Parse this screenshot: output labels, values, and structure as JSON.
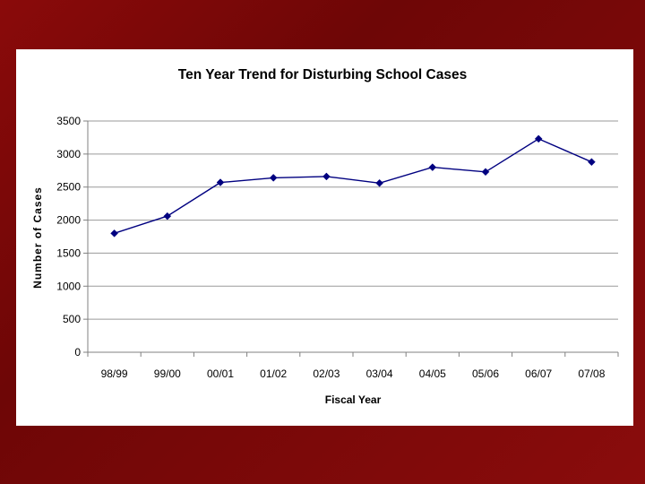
{
  "chart_data": {
    "type": "line",
    "title": "Ten Year Trend for Disturbing School Cases",
    "xlabel": "Fiscal Year",
    "ylabel": "Number of Cases",
    "categories": [
      "98/99",
      "99/00",
      "00/01",
      "01/02",
      "02/03",
      "03/04",
      "04/05",
      "05/06",
      "06/07",
      "07/08"
    ],
    "series": [
      {
        "name": "Disturbing School Cases",
        "values": [
          1800,
          2060,
          2570,
          2640,
          2660,
          2560,
          2800,
          2730,
          3230,
          2880
        ]
      }
    ],
    "yticks": [
      0,
      500,
      1000,
      1500,
      2000,
      2500,
      3000,
      3500
    ],
    "ylim": [
      0,
      3500
    ],
    "grid": true,
    "legend": "none",
    "colors": {
      "line": "#000080",
      "marker": "#000080",
      "grid": "#9a9a9a",
      "axis": "#808080"
    }
  }
}
